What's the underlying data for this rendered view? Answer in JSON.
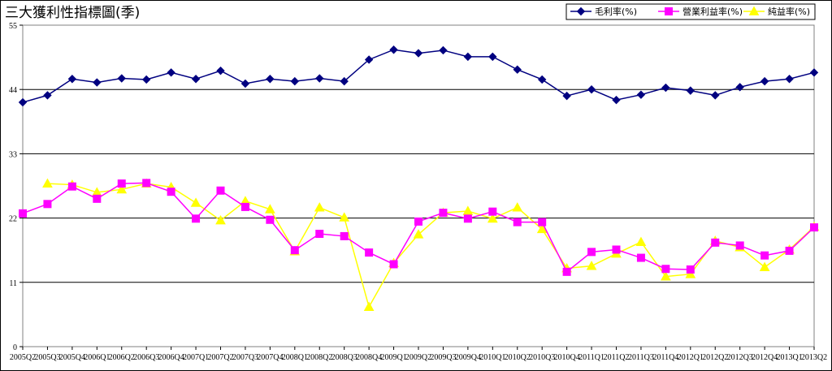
{
  "chart_data": {
    "type": "line",
    "title": "三大獲利性指標圖(季)",
    "xlabel": "",
    "ylabel": "",
    "ylim": [
      0,
      55
    ],
    "yticks": [
      0,
      11,
      22,
      33,
      44,
      55
    ],
    "grid": true,
    "legend_position": "top-right",
    "categories": [
      "2005Q2",
      "2005Q3",
      "2005Q4",
      "2006Q1",
      "2006Q2",
      "2006Q3",
      "2006Q4",
      "2007Q1",
      "2007Q2",
      "2007Q3",
      "2007Q4",
      "2008Q1",
      "2008Q2",
      "2008Q3",
      "2008Q4",
      "2009Q1",
      "2009Q2",
      "2009Q3",
      "2009Q4",
      "2010Q1",
      "2010Q2",
      "2010Q3",
      "2010Q4",
      "2011Q1",
      "2011Q2",
      "2011Q3",
      "2011Q4",
      "2012Q1",
      "2012Q2",
      "2012Q3",
      "2012Q4",
      "2013Q1",
      "2013Q2"
    ],
    "series": [
      {
        "name": "毛利率(%)",
        "color": "#000080",
        "marker": "diamond",
        "values": [
          41.8,
          43.0,
          45.8,
          45.2,
          45.9,
          45.7,
          46.9,
          45.8,
          47.2,
          45.0,
          45.8,
          45.4,
          45.9,
          45.4,
          49.1,
          50.8,
          50.2,
          50.7,
          49.6,
          49.6,
          47.4,
          45.7,
          42.9,
          44.0,
          42.2,
          43.1,
          44.3,
          43.8,
          43.0,
          44.4,
          45.4,
          45.8,
          46.9
        ]
      },
      {
        "name": "營業利益率(%)",
        "color": "#ff00ff",
        "marker": "square",
        "values": [
          22.8,
          24.4,
          27.4,
          25.3,
          27.9,
          28.0,
          26.5,
          21.9,
          26.7,
          23.9,
          21.7,
          16.5,
          19.3,
          18.9,
          16.1,
          14.1,
          21.4,
          22.9,
          21.9,
          23.1,
          21.3,
          21.3,
          12.8,
          16.2,
          16.6,
          15.2,
          13.3,
          13.2,
          17.8,
          17.3,
          15.6,
          16.4,
          20.4
        ]
      },
      {
        "name": "純益率(%)",
        "color": "#ffff00",
        "marker": "triangle",
        "values": [
          null,
          27.9,
          27.7,
          26.4,
          26.9,
          27.9,
          27.3,
          24.6,
          21.6,
          24.9,
          23.5,
          16.3,
          23.8,
          22.1,
          6.8,
          14.3,
          19.2,
          22.9,
          23.2,
          21.9,
          23.8,
          20.1,
          13.4,
          13.8,
          15.9,
          17.9,
          12.0,
          12.4,
          18.1,
          17.0,
          13.6,
          16.6,
          20.5
        ]
      }
    ]
  }
}
